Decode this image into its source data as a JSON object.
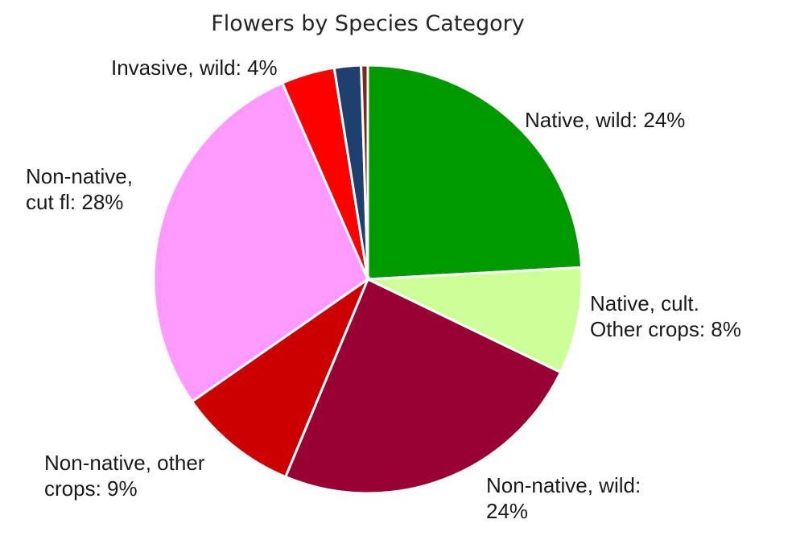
{
  "chart_data": {
    "type": "pie",
    "title": "Flowers by Species Category",
    "start_angle_deg": 0,
    "direction": "clockwise",
    "slices": [
      {
        "label_lines": [
          "Native, wild: 24%"
        ],
        "value": 24,
        "color": "#009900"
      },
      {
        "label_lines": [
          "Native, cult.",
          "Other crops: 8%"
        ],
        "value": 8,
        "color": "#ccff99"
      },
      {
        "label_lines": [
          "Non-native, wild:",
          "24%"
        ],
        "value": 24,
        "color": "#990033"
      },
      {
        "label_lines": [
          "Non-native, other",
          "crops: 9%"
        ],
        "value": 9,
        "color": "#cc0000"
      },
      {
        "label_lines": [
          "Non-native,",
          "cut fl: 28%"
        ],
        "value": 28,
        "color": "#ff99ff"
      },
      {
        "label_lines": [
          "Invasive, wild: 4%"
        ],
        "value": 4,
        "color": "#ff0000"
      },
      {
        "label_lines": [],
        "value": 2,
        "color": "#1f3f6e"
      },
      {
        "label_lines": [],
        "value": 0.5,
        "color": "#7a2a1a"
      }
    ],
    "legend": "none"
  }
}
